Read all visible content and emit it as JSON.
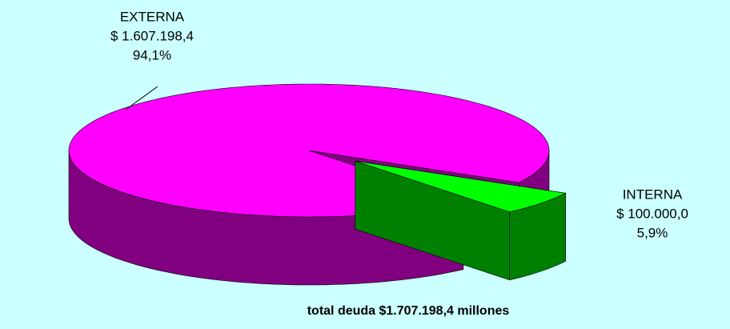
{
  "chart_data": {
    "type": "pie",
    "categories": [
      "EXTERNA",
      "INTERNA"
    ],
    "values": [
      1607198.4,
      100000.0
    ],
    "value_labels": [
      "$ 1.607.198,4",
      "$ 100.000,0"
    ],
    "percent_labels": [
      "94,1%",
      "5,9%"
    ],
    "colors": [
      "#ff00ff",
      "#00ff00"
    ],
    "side_colors": [
      "#800080",
      "#008000"
    ],
    "annotation": "total deuda $1.707.198,4 millones"
  }
}
